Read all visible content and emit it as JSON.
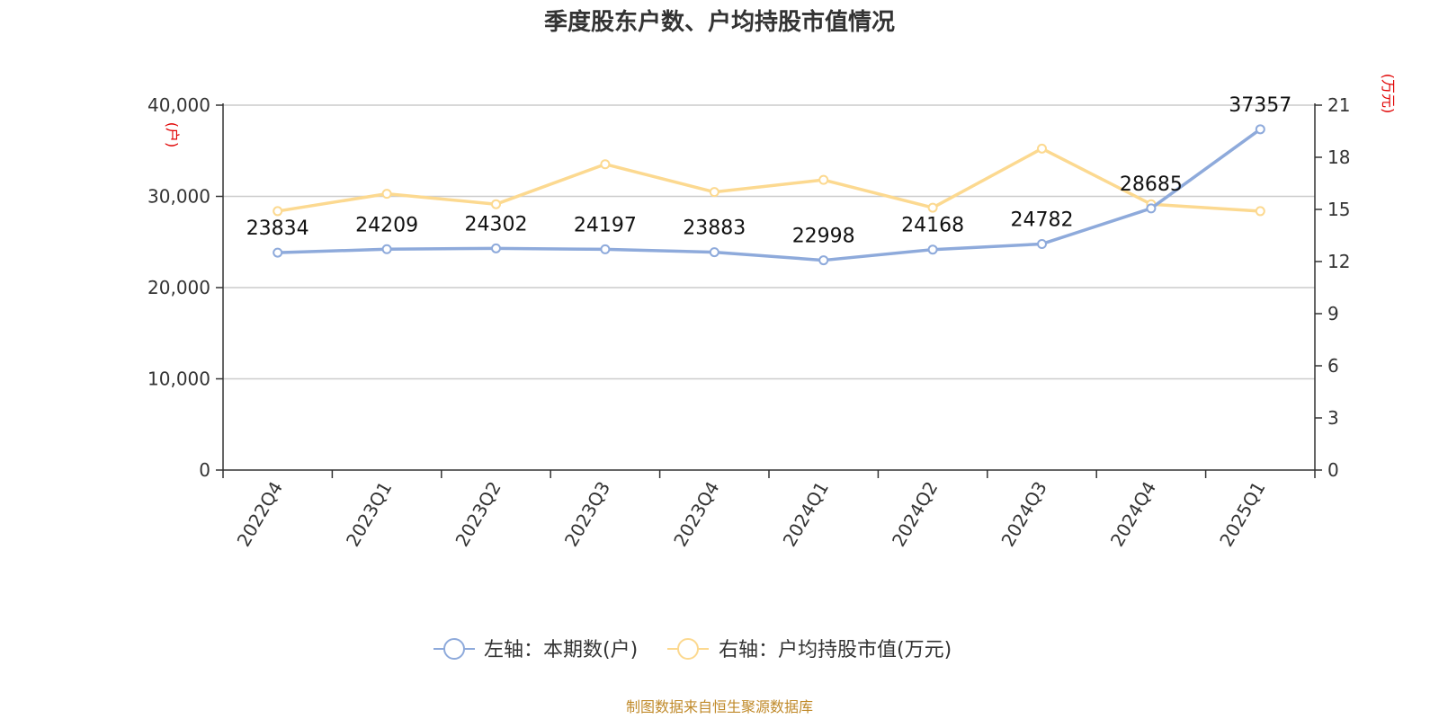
{
  "chart_data": {
    "type": "line",
    "title": "季度股东户数、户均持股市值情况",
    "categories": [
      "2022Q4",
      "2023Q1",
      "2023Q2",
      "2023Q3",
      "2023Q4",
      "2024Q1",
      "2024Q2",
      "2024Q3",
      "2024Q4",
      "2025Q1"
    ],
    "left_axis": {
      "unit": "(户)",
      "ylim": [
        0,
        40000
      ],
      "ticks": [
        0,
        10000,
        20000,
        30000,
        40000
      ],
      "tick_labels": [
        "0",
        "10,000",
        "20,000",
        "30,000",
        "40,000"
      ]
    },
    "right_axis": {
      "unit": "(万元)",
      "ylim": [
        0,
        21
      ],
      "ticks": [
        0,
        3,
        6,
        9,
        12,
        15,
        18,
        21
      ],
      "tick_labels": [
        "0",
        "3",
        "6",
        "9",
        "12",
        "15",
        "18",
        "21"
      ]
    },
    "series": [
      {
        "name": "左轴：本期数(户)",
        "axis": "left",
        "color": "#8eaadb",
        "values": [
          23834,
          24209,
          24302,
          24197,
          23883,
          22998,
          24168,
          24782,
          28685,
          37357
        ],
        "labels": [
          "23834",
          "24209",
          "24302",
          "24197",
          "23883",
          "22998",
          "24168",
          "24782",
          "28685",
          "37357"
        ]
      },
      {
        "name": "右轴：户均持股市值(万元)",
        "axis": "right",
        "color": "#fcd990",
        "values": [
          14.9,
          15.9,
          15.3,
          17.6,
          16.0,
          16.7,
          15.1,
          18.5,
          15.3,
          14.9
        ]
      }
    ],
    "grid": true,
    "legend_position": "bottom-center",
    "source": "制图数据来自恒生聚源数据库"
  }
}
